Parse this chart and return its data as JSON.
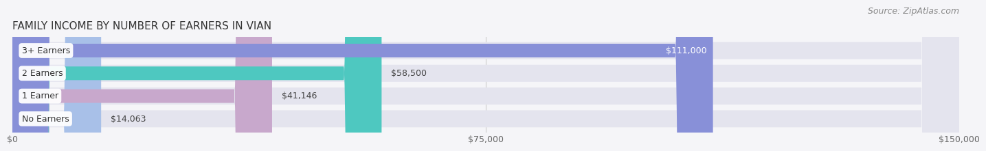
{
  "title": "FAMILY INCOME BY NUMBER OF EARNERS IN VIAN",
  "source": "Source: ZipAtlas.com",
  "categories": [
    "No Earners",
    "1 Earner",
    "2 Earners",
    "3+ Earners"
  ],
  "values": [
    14063,
    41146,
    58500,
    111000
  ],
  "labels": [
    "$14,063",
    "$41,146",
    "$58,500",
    "$111,000"
  ],
  "bar_colors": [
    "#a8c0e8",
    "#c8a8cc",
    "#4ec8c0",
    "#8890d8"
  ],
  "label_colors": [
    "#444444",
    "#444444",
    "#444444",
    "#ffffff"
  ],
  "xmax": 150000,
  "xticks": [
    0,
    75000,
    150000
  ],
  "xticklabels": [
    "$0",
    "$75,000",
    "$150,000"
  ],
  "background_color": "#f5f5f8",
  "bar_background_color": "#e4e4ee",
  "title_fontsize": 11,
  "source_fontsize": 9,
  "tick_fontsize": 9,
  "label_fontsize": 9,
  "category_fontsize": 9
}
